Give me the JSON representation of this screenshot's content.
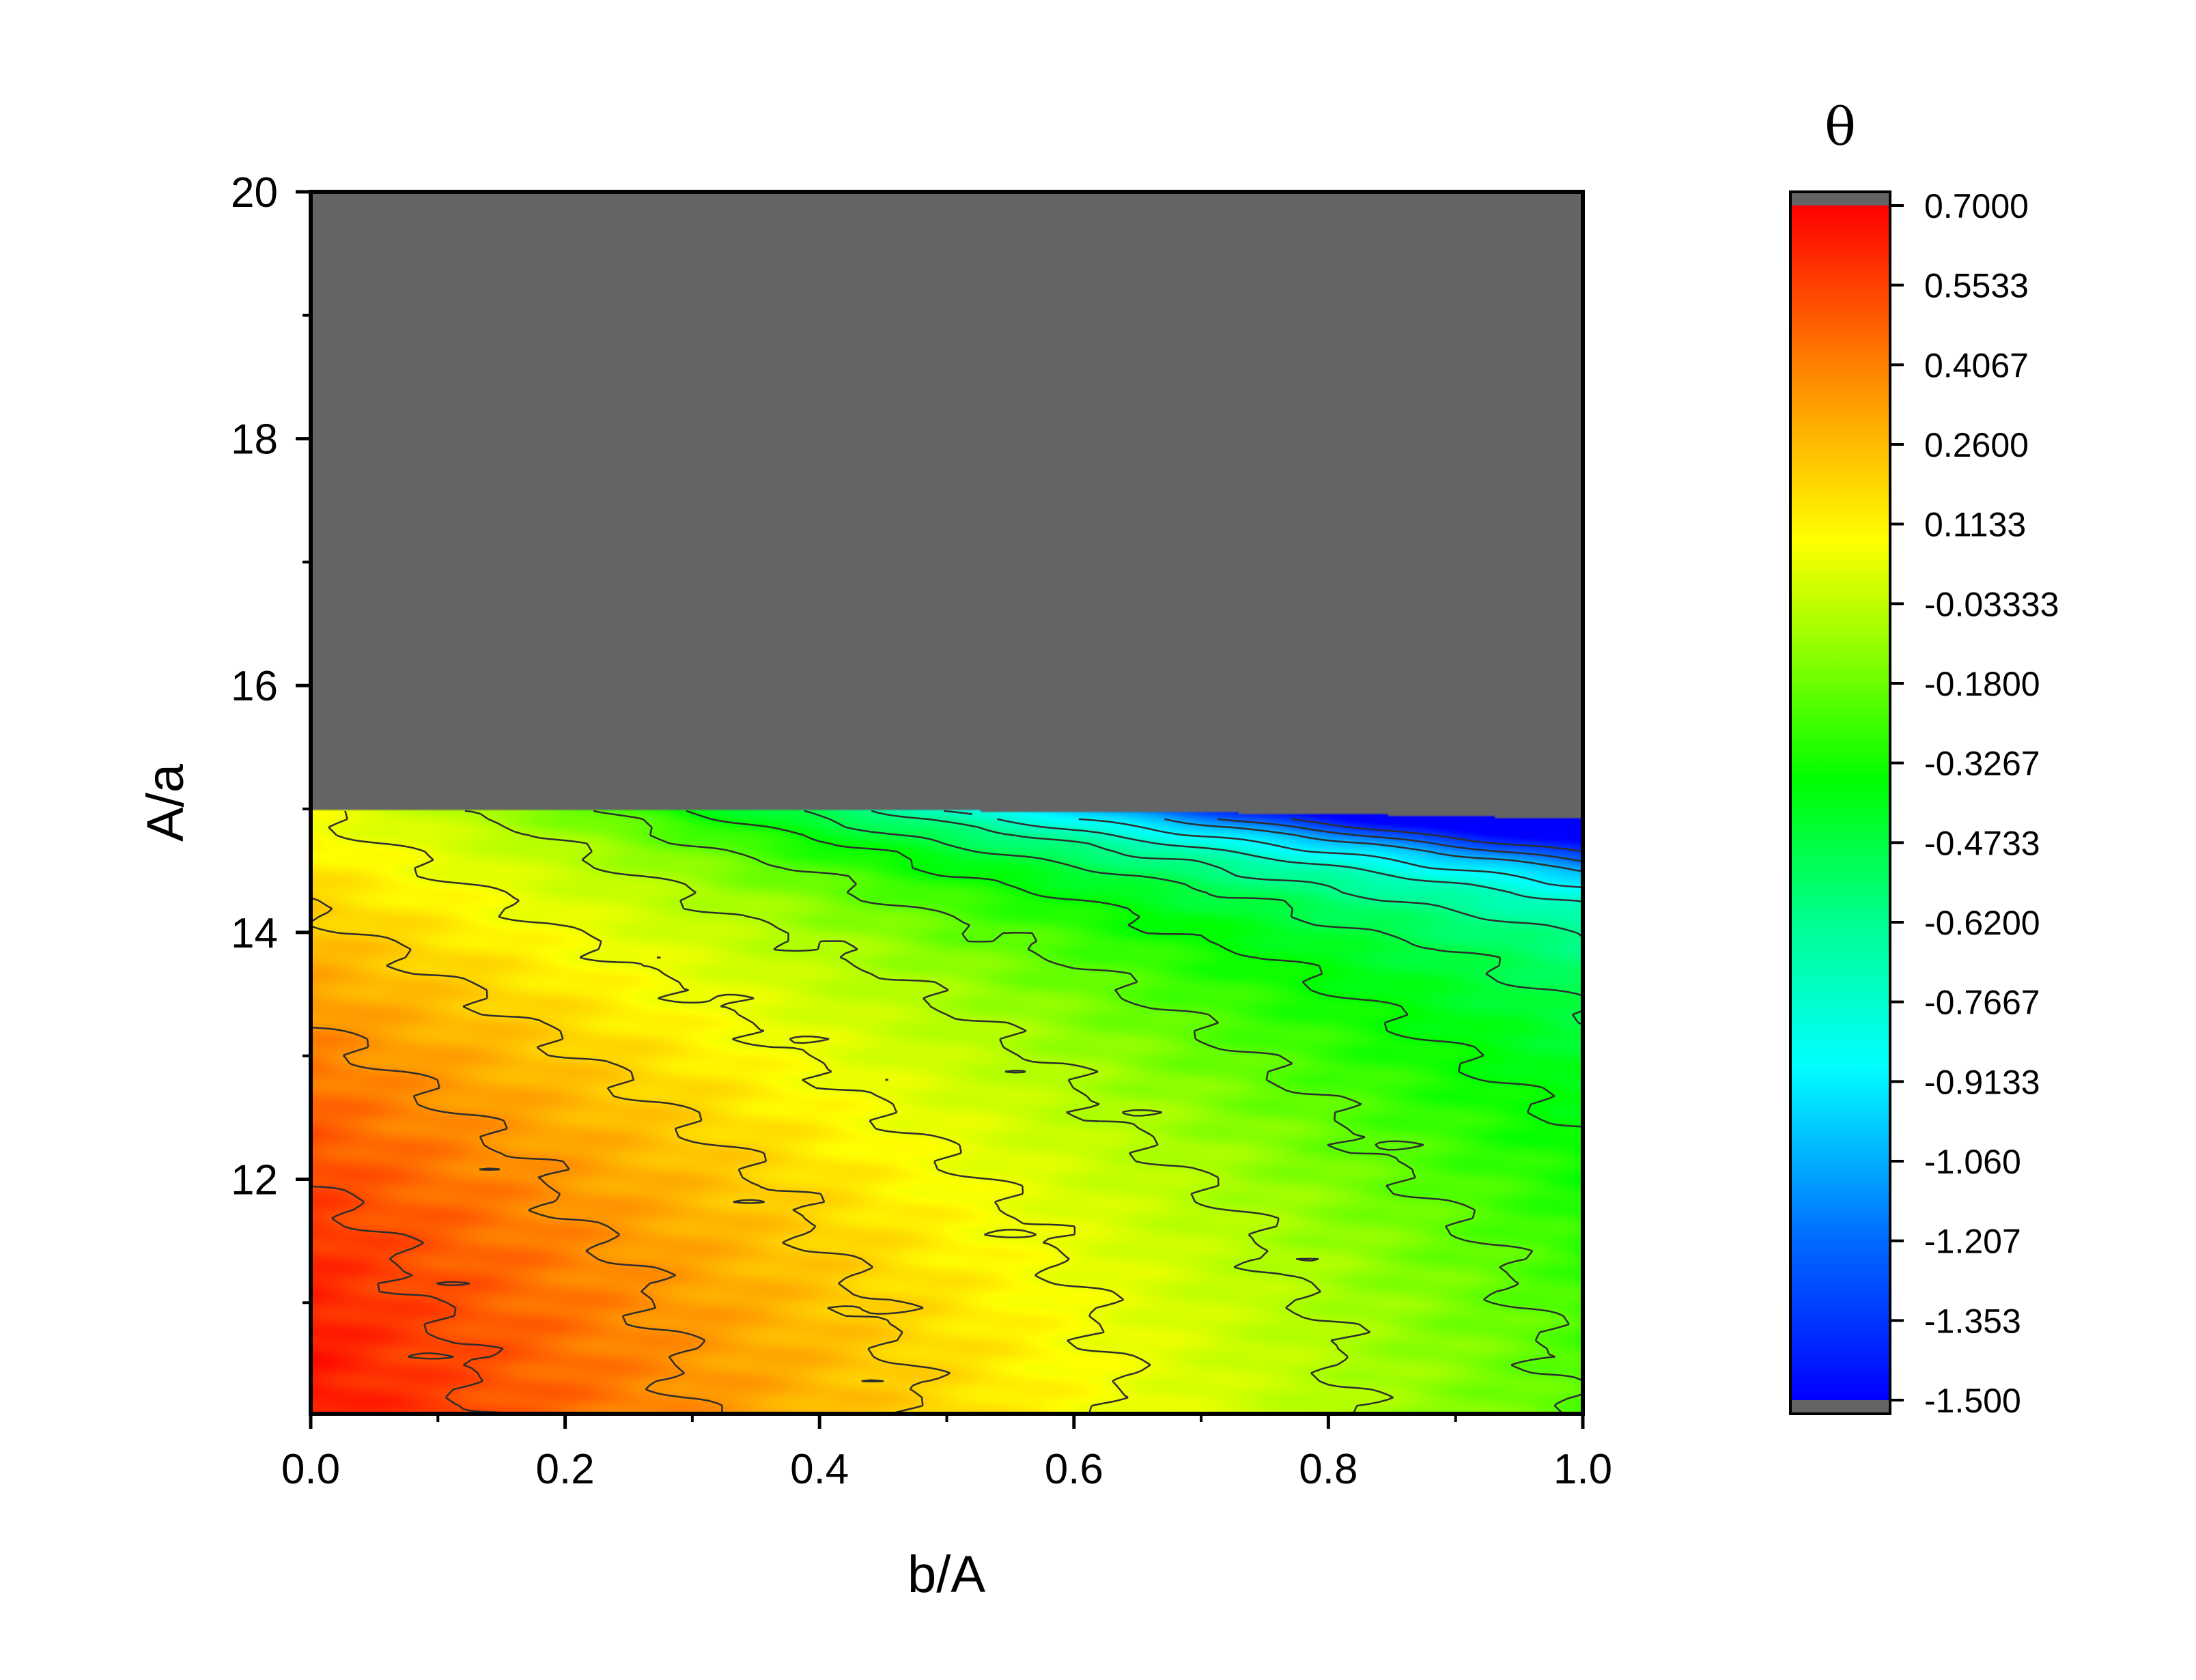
{
  "chart_data": {
    "type": "heatmap",
    "subtype": "filled-contour",
    "title": "",
    "xlabel": "b/A",
    "ylabel": "A/a",
    "xlim": [
      0.0,
      1.0
    ],
    "ylim": [
      10.1,
      20
    ],
    "x_ticks": [
      "0.0",
      "0.2",
      "0.4",
      "0.6",
      "0.8",
      "1.0"
    ],
    "y_ticks": [
      "12",
      "14",
      "16",
      "18",
      "20"
    ],
    "grid": false,
    "undefined_region": {
      "description": "no data (gray)",
      "color": "#646464",
      "boundary": [
        {
          "x": 0.0,
          "y": 15.0
        },
        {
          "x": 0.2,
          "y": 15.0
        },
        {
          "x": 0.4,
          "y": 14.99
        },
        {
          "x": 0.6,
          "y": 14.98
        },
        {
          "x": 0.8,
          "y": 14.96
        },
        {
          "x": 1.0,
          "y": 14.92
        }
      ]
    },
    "value_field": "θ",
    "value_range": [
      -1.5,
      0.7
    ],
    "trend": "θ is highest (red, ~0.5–0.7) at small b/A and low A/a, decreasing toward large b/A and high A/a (blue, ~-1.5) just below the A/a≈15 boundary",
    "colorbar": {
      "title": "θ",
      "ticks": [
        "0.7000",
        "0.5533",
        "0.4067",
        "0.2600",
        "0.1133",
        "-0.03333",
        "-0.1800",
        "-0.3267",
        "-0.4733",
        "-0.6200",
        "-0.7667",
        "-0.9133",
        "-1.060",
        "-1.207",
        "-1.353",
        "-1.500"
      ],
      "under_over_color": "#646464",
      "colors": [
        "#0000ff",
        "#0080ff",
        "#00ffff",
        "#00ff80",
        "#00ff00",
        "#80ff00",
        "#ffff00",
        "#ff8000",
        "#ff0000"
      ]
    }
  }
}
